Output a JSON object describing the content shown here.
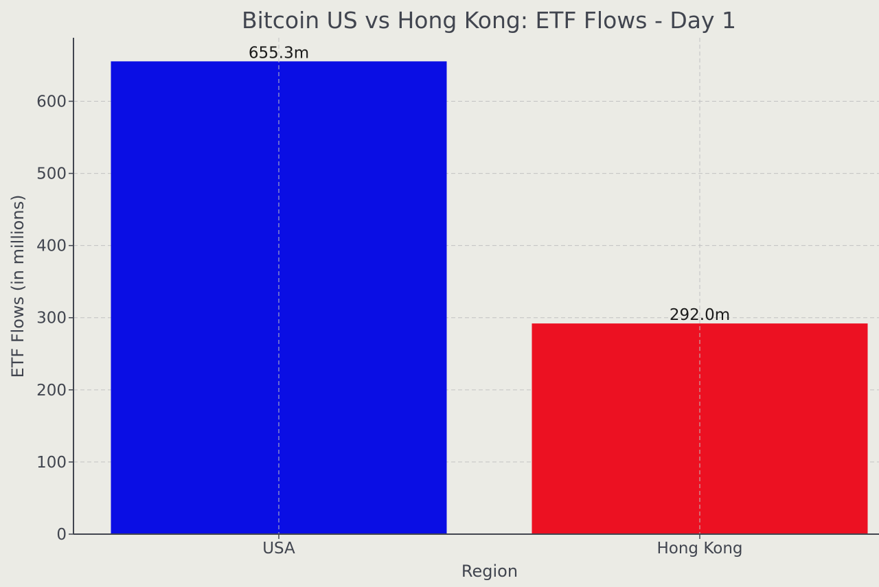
{
  "chart_data": {
    "type": "bar",
    "title": "Bitcoin US vs Hong Kong: ETF Flows - Day 1",
    "xlabel": "Region",
    "ylabel": "ETF Flows (in millions)",
    "categories": [
      "USA",
      "Hong Kong"
    ],
    "values": [
      655.3,
      292.0
    ],
    "data_labels": [
      "655.3m",
      "292.0m"
    ],
    "colors": [
      "#0a0ee4",
      "#ec1122"
    ],
    "yticks": [
      0,
      100,
      200,
      300,
      400,
      500,
      600
    ],
    "ylim": [
      0,
      688
    ],
    "grid": true,
    "background": "#ebebe5"
  }
}
